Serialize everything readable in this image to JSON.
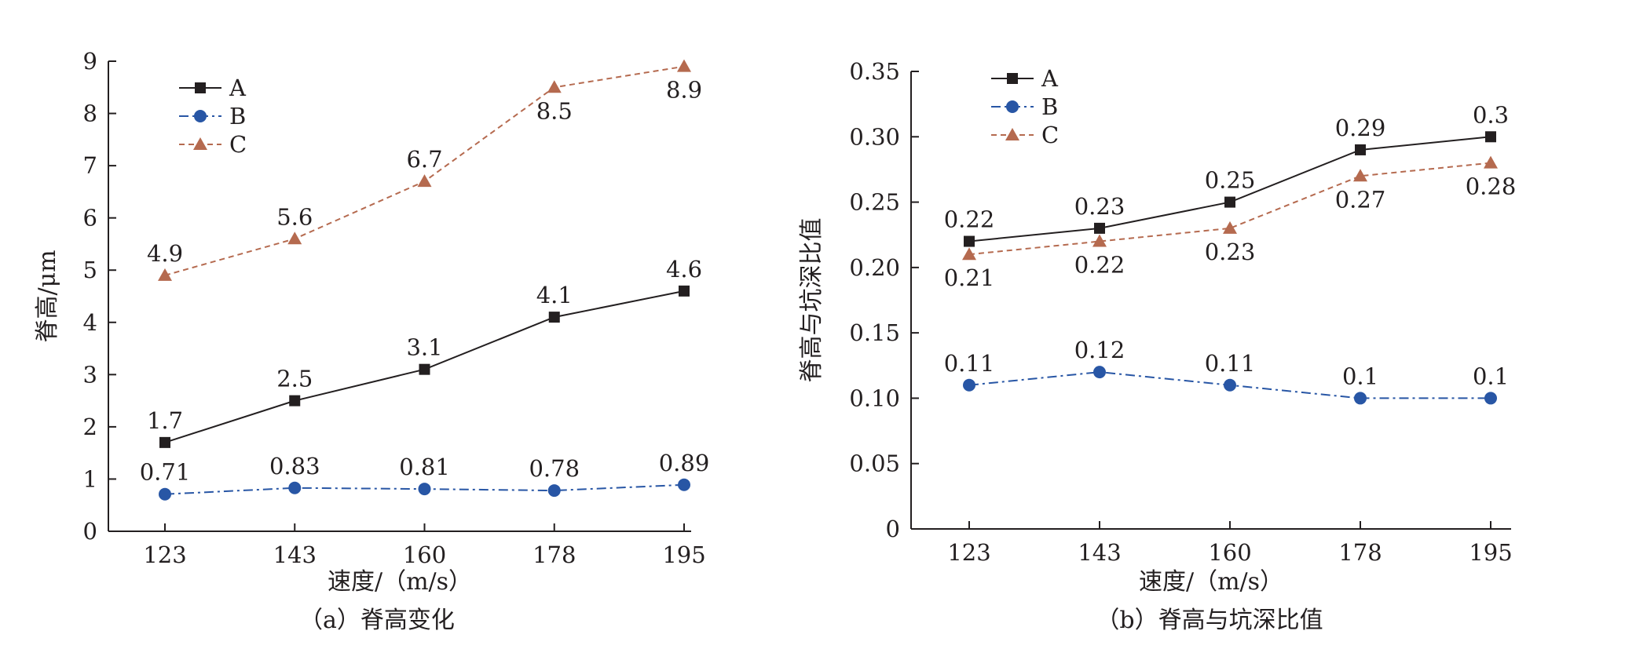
{
  "chart_data": [
    {
      "type": "line",
      "caption": "（a）脊高变化",
      "xlabel": "速度/（m/s）",
      "ylabel": "脊高/μm",
      "categories": [
        "123",
        "143",
        "160",
        "178",
        "195"
      ],
      "ylim": [
        0,
        9
      ],
      "yticks": [
        0,
        1,
        2,
        3,
        4,
        5,
        6,
        7,
        8,
        9
      ],
      "ytick_labels": [
        "0",
        "1",
        "2",
        "3",
        "4",
        "5",
        "6",
        "7",
        "8",
        "9"
      ],
      "legend_position": "top-left",
      "grid": false,
      "series": [
        {
          "name": "A",
          "values": [
            1.7,
            2.5,
            3.1,
            4.1,
            4.6
          ],
          "labels": [
            "1.7",
            "2.5",
            "3.1",
            "4.1",
            "4.6"
          ],
          "label_pos": [
            "above",
            "above",
            "above",
            "above",
            "above"
          ],
          "color": "#231f20",
          "marker": "square",
          "dash": "solid"
        },
        {
          "name": "B",
          "values": [
            0.71,
            0.83,
            0.81,
            0.78,
            0.89
          ],
          "labels": [
            "0.71",
            "0.83",
            "0.81",
            "0.78",
            "0.89"
          ],
          "label_pos": [
            "above",
            "above",
            "above",
            "above",
            "above"
          ],
          "color": "#2856a5",
          "marker": "circle",
          "dash": "dashdot"
        },
        {
          "name": "C",
          "values": [
            4.9,
            5.6,
            6.7,
            8.5,
            8.9
          ],
          "labels": [
            "4.9",
            "5.6",
            "6.7",
            "8.5",
            "8.9"
          ],
          "label_pos": [
            "above",
            "above",
            "above",
            "below",
            "below"
          ],
          "color": "#b56a4f",
          "marker": "triangle",
          "dash": "dashed"
        }
      ]
    },
    {
      "type": "line",
      "caption": "（b）脊高与坑深比值",
      "xlabel": "速度/（m/s）",
      "ylabel": "脊高与坑深比值",
      "categories": [
        "123",
        "143",
        "160",
        "178",
        "195"
      ],
      "ylim": [
        0,
        0.35
      ],
      "yticks": [
        0,
        0.05,
        0.1,
        0.15,
        0.2,
        0.25,
        0.3,
        0.35
      ],
      "ytick_labels": [
        "0",
        "0.05",
        "0.10",
        "0.15",
        "0.20",
        "0.25",
        "0.30",
        "0.35"
      ],
      "legend_position": "top-left",
      "grid": false,
      "series": [
        {
          "name": "A",
          "values": [
            0.22,
            0.23,
            0.25,
            0.29,
            0.3
          ],
          "labels": [
            "0.22",
            "0.23",
            "0.25",
            "0.29",
            "0.3"
          ],
          "label_pos": [
            "above",
            "above",
            "above",
            "above",
            "above"
          ],
          "color": "#231f20",
          "marker": "square",
          "dash": "solid"
        },
        {
          "name": "B",
          "values": [
            0.11,
            0.12,
            0.11,
            0.1,
            0.1
          ],
          "labels": [
            "0.11",
            "0.12",
            "0.11",
            "0.1",
            "0.1"
          ],
          "label_pos": [
            "above",
            "above",
            "above",
            "above",
            "above"
          ],
          "color": "#2856a5",
          "marker": "circle",
          "dash": "dashdot"
        },
        {
          "name": "C",
          "values": [
            0.21,
            0.22,
            0.23,
            0.27,
            0.28
          ],
          "labels": [
            "0.21",
            "0.22",
            "0.23",
            "0.27",
            "0.28"
          ],
          "label_pos": [
            "below",
            "below",
            "below",
            "below",
            "below"
          ],
          "color": "#b56a4f",
          "marker": "triangle",
          "dash": "dashed"
        }
      ]
    }
  ]
}
